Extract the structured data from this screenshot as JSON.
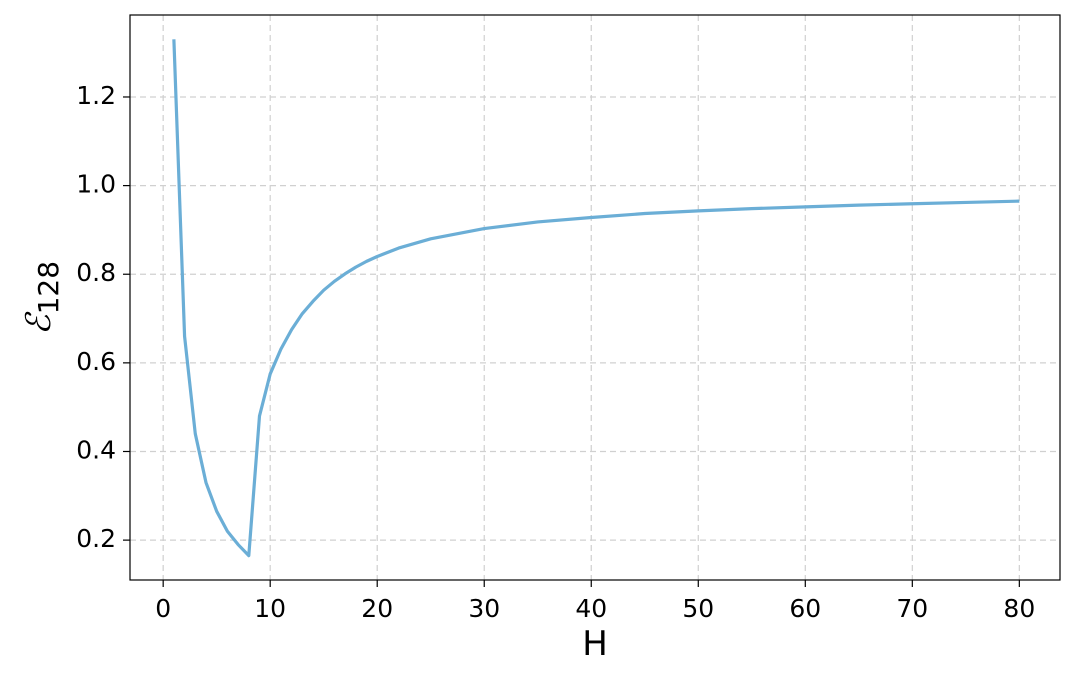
{
  "chart_data": {
    "type": "line",
    "xlabel": "H",
    "ylabel": {
      "symbol": "ℰ",
      "subscript": "128"
    },
    "series": [
      {
        "color": "#6baed6",
        "x": [
          1,
          2,
          3,
          4,
          5,
          6,
          7,
          8,
          9,
          10,
          11,
          12,
          13,
          14,
          15,
          16,
          17,
          18,
          19,
          20,
          22,
          25,
          30,
          35,
          40,
          45,
          50,
          55,
          60,
          65,
          70,
          75,
          80
        ],
        "values": [
          1.33,
          0.66,
          0.44,
          0.33,
          0.265,
          0.22,
          0.19,
          0.165,
          0.48,
          0.575,
          0.631,
          0.675,
          0.711,
          0.739,
          0.764,
          0.784,
          0.801,
          0.816,
          0.829,
          0.84,
          0.859,
          0.88,
          0.903,
          0.918,
          0.928,
          0.937,
          0.943,
          0.948,
          0.952,
          0.956,
          0.959,
          0.962,
          0.965
        ]
      }
    ],
    "xlim": [
      -3.1,
      83.8
    ],
    "ylim": [
      0.11,
      1.385
    ],
    "xticks": [
      0,
      10,
      20,
      30,
      40,
      50,
      60,
      70,
      80
    ],
    "yticks": [
      0.2,
      0.4,
      0.6,
      0.8,
      {
        "value": 1,
        "label": "1.0"
      },
      1.2
    ],
    "grid": true
  }
}
